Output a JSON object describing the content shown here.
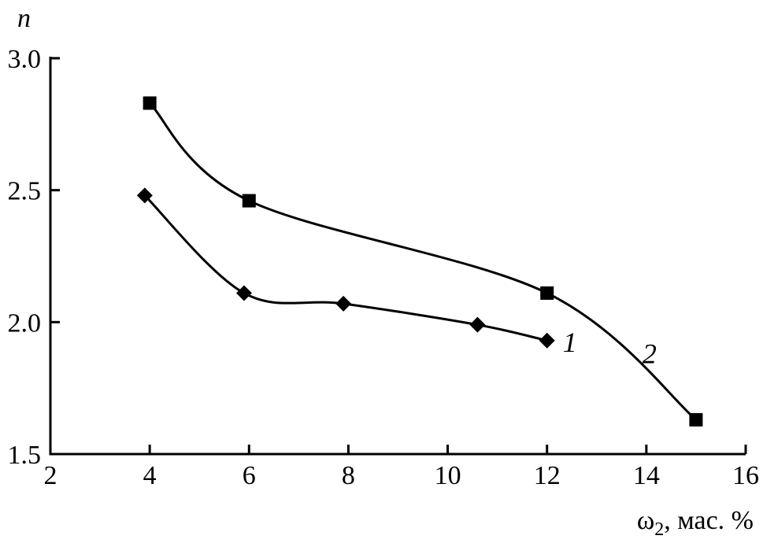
{
  "chart_data": {
    "type": "line",
    "ylabel": "n",
    "xlabel_main": "ω",
    "xlabel_sub": "2",
    "xlabel_rest": ", мас. %",
    "xlim": [
      2,
      16
    ],
    "ylim": [
      1.5,
      3.0
    ],
    "xticks": [
      2,
      4,
      6,
      8,
      10,
      12,
      14,
      16
    ],
    "yticks": [
      "1.5",
      "2.0",
      "2.5",
      "3.0"
    ],
    "grid": false,
    "series": [
      {
        "name": "1",
        "marker": "diamond",
        "x": [
          3.9,
          5.9,
          7.9,
          10.6,
          12.0
        ],
        "y": [
          2.48,
          2.11,
          2.07,
          1.99,
          1.93
        ]
      },
      {
        "name": "2",
        "marker": "square",
        "x": [
          4.0,
          6.0,
          12.0,
          15.0
        ],
        "y": [
          2.83,
          2.46,
          2.11,
          1.63
        ]
      }
    ]
  }
}
